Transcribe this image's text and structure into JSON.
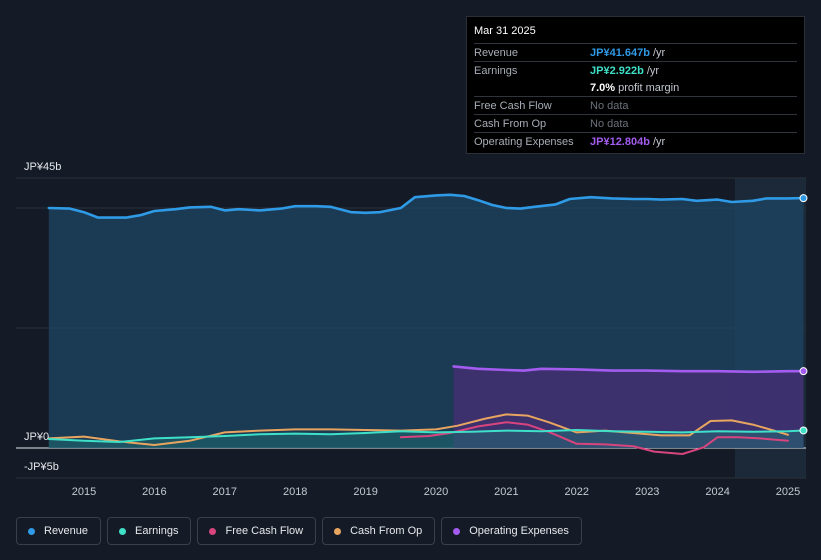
{
  "tooltip": {
    "date": "Mar 31 2025",
    "rows": [
      {
        "label": "Revenue",
        "value": "JP¥41.647b",
        "unit": "/yr"
      },
      {
        "label": "Earnings",
        "value": "JP¥2.922b",
        "unit": "/yr"
      },
      {
        "label": "",
        "value": "7.0%",
        "unit": "profit margin"
      },
      {
        "label": "Free Cash Flow",
        "value": "No data"
      },
      {
        "label": "Cash From Op",
        "value": "No data"
      },
      {
        "label": "Operating Expenses",
        "value": "JP¥12.804b",
        "unit": "/yr"
      }
    ]
  },
  "legend": [
    {
      "label": "Revenue",
      "color": "#2f9ae6"
    },
    {
      "label": "Earnings",
      "color": "#3fe0c8"
    },
    {
      "label": "Free Cash Flow",
      "color": "#d8457e"
    },
    {
      "label": "Cash From Op",
      "color": "#e8a560"
    },
    {
      "label": "Operating Expenses",
      "color": "#a45cf0"
    }
  ],
  "chart_data": {
    "type": "area",
    "title": "",
    "xlabel": "",
    "ylabel": "",
    "ylim": [
      -5,
      45
    ],
    "y_tick_labels": [
      "JP¥45b",
      "JP¥0",
      "-JP¥5b"
    ],
    "x_tick_labels": [
      "2015",
      "2016",
      "2017",
      "2018",
      "2019",
      "2020",
      "2021",
      "2022",
      "2023",
      "2024",
      "2025"
    ],
    "series": [
      {
        "name": "Revenue",
        "color": "#2f9ae6",
        "points": [
          [
            2014.5,
            40
          ],
          [
            2014.8,
            39.9
          ],
          [
            2015.0,
            39.3
          ],
          [
            2015.2,
            38.4
          ],
          [
            2015.6,
            38.4
          ],
          [
            2015.8,
            38.8
          ],
          [
            2016.0,
            39.5
          ],
          [
            2016.3,
            39.8
          ],
          [
            2016.5,
            40.1
          ],
          [
            2016.8,
            40.2
          ],
          [
            2017.0,
            39.6
          ],
          [
            2017.2,
            39.8
          ],
          [
            2017.5,
            39.6
          ],
          [
            2017.8,
            39.9
          ],
          [
            2018.0,
            40.3
          ],
          [
            2018.3,
            40.3
          ],
          [
            2018.5,
            40.2
          ],
          [
            2018.8,
            39.3
          ],
          [
            2019.0,
            39.2
          ],
          [
            2019.2,
            39.3
          ],
          [
            2019.5,
            40
          ],
          [
            2019.7,
            41.8
          ],
          [
            2020.0,
            42.1
          ],
          [
            2020.2,
            42.2
          ],
          [
            2020.4,
            42
          ],
          [
            2020.6,
            41.3
          ],
          [
            2020.8,
            40.5
          ],
          [
            2021.0,
            40
          ],
          [
            2021.2,
            39.9
          ],
          [
            2021.4,
            40.2
          ],
          [
            2021.7,
            40.6
          ],
          [
            2021.9,
            41.5
          ],
          [
            2022.2,
            41.8
          ],
          [
            2022.5,
            41.6
          ],
          [
            2022.8,
            41.5
          ],
          [
            2023.0,
            41.5
          ],
          [
            2023.2,
            41.4
          ],
          [
            2023.5,
            41.5
          ],
          [
            2023.7,
            41.2
          ],
          [
            2024.0,
            41.4
          ],
          [
            2024.2,
            41
          ],
          [
            2024.5,
            41.2
          ],
          [
            2024.7,
            41.6
          ],
          [
            2025.0,
            41.6
          ],
          [
            2025.22,
            41.647
          ]
        ]
      },
      {
        "name": "Operating Expenses",
        "color": "#a45cf0",
        "points": [
          [
            2020.25,
            13.6
          ],
          [
            2020.6,
            13.2
          ],
          [
            2021.0,
            13
          ],
          [
            2021.25,
            12.9
          ],
          [
            2021.5,
            13.2
          ],
          [
            2022.0,
            13.1
          ],
          [
            2022.5,
            12.9
          ],
          [
            2023.0,
            12.9
          ],
          [
            2023.5,
            12.8
          ],
          [
            2024.0,
            12.8
          ],
          [
            2024.5,
            12.7
          ],
          [
            2025.0,
            12.8
          ],
          [
            2025.22,
            12.804
          ]
        ]
      },
      {
        "name": "Earnings",
        "color": "#3fe0c8",
        "points": [
          [
            2014.5,
            1.5
          ],
          [
            2015.0,
            1.2
          ],
          [
            2015.5,
            1.0
          ],
          [
            2016.0,
            1.6
          ],
          [
            2016.5,
            1.8
          ],
          [
            2017.0,
            2.0
          ],
          [
            2017.5,
            2.3
          ],
          [
            2018.0,
            2.4
          ],
          [
            2018.5,
            2.3
          ],
          [
            2019.0,
            2.5
          ],
          [
            2019.5,
            2.8
          ],
          [
            2020.0,
            2.6
          ],
          [
            2020.5,
            2.7
          ],
          [
            2021.0,
            2.9
          ],
          [
            2021.5,
            2.8
          ],
          [
            2022.0,
            3.0
          ],
          [
            2022.5,
            2.8
          ],
          [
            2023.0,
            2.7
          ],
          [
            2023.5,
            2.6
          ],
          [
            2024.0,
            2.8
          ],
          [
            2024.5,
            2.7
          ],
          [
            2025.0,
            2.8
          ],
          [
            2025.22,
            2.922
          ]
        ]
      },
      {
        "name": "Free Cash Flow",
        "color": "#d8457e",
        "points": [
          [
            2019.5,
            1.8
          ],
          [
            2019.9,
            2.0
          ],
          [
            2020.2,
            2.5
          ],
          [
            2020.6,
            3.6
          ],
          [
            2021.0,
            4.3
          ],
          [
            2021.3,
            3.9
          ],
          [
            2021.6,
            2.7
          ],
          [
            2022.0,
            0.7
          ],
          [
            2022.4,
            0.6
          ],
          [
            2022.8,
            0.3
          ],
          [
            2023.1,
            -0.6
          ],
          [
            2023.5,
            -1.0
          ],
          [
            2023.8,
            0.1
          ],
          [
            2024.0,
            1.8
          ],
          [
            2024.3,
            1.8
          ],
          [
            2024.6,
            1.6
          ],
          [
            2025.0,
            1.2
          ]
        ]
      },
      {
        "name": "Cash From Op",
        "color": "#e8a560",
        "points": [
          [
            2014.5,
            1.6
          ],
          [
            2015.0,
            1.9
          ],
          [
            2015.5,
            1.1
          ],
          [
            2016.0,
            0.5
          ],
          [
            2016.5,
            1.2
          ],
          [
            2017.0,
            2.6
          ],
          [
            2017.5,
            2.9
          ],
          [
            2018.0,
            3.1
          ],
          [
            2018.5,
            3.1
          ],
          [
            2019.0,
            3.0
          ],
          [
            2019.5,
            2.9
          ],
          [
            2020.0,
            3.1
          ],
          [
            2020.3,
            3.7
          ],
          [
            2020.7,
            4.9
          ],
          [
            2021.0,
            5.6
          ],
          [
            2021.3,
            5.4
          ],
          [
            2021.6,
            4.3
          ],
          [
            2022.0,
            2.6
          ],
          [
            2022.4,
            2.9
          ],
          [
            2022.8,
            2.5
          ],
          [
            2023.2,
            2.1
          ],
          [
            2023.6,
            2.1
          ],
          [
            2023.9,
            4.5
          ],
          [
            2024.2,
            4.6
          ],
          [
            2024.5,
            3.9
          ],
          [
            2024.8,
            2.9
          ],
          [
            2025.0,
            2.2
          ]
        ]
      }
    ]
  }
}
